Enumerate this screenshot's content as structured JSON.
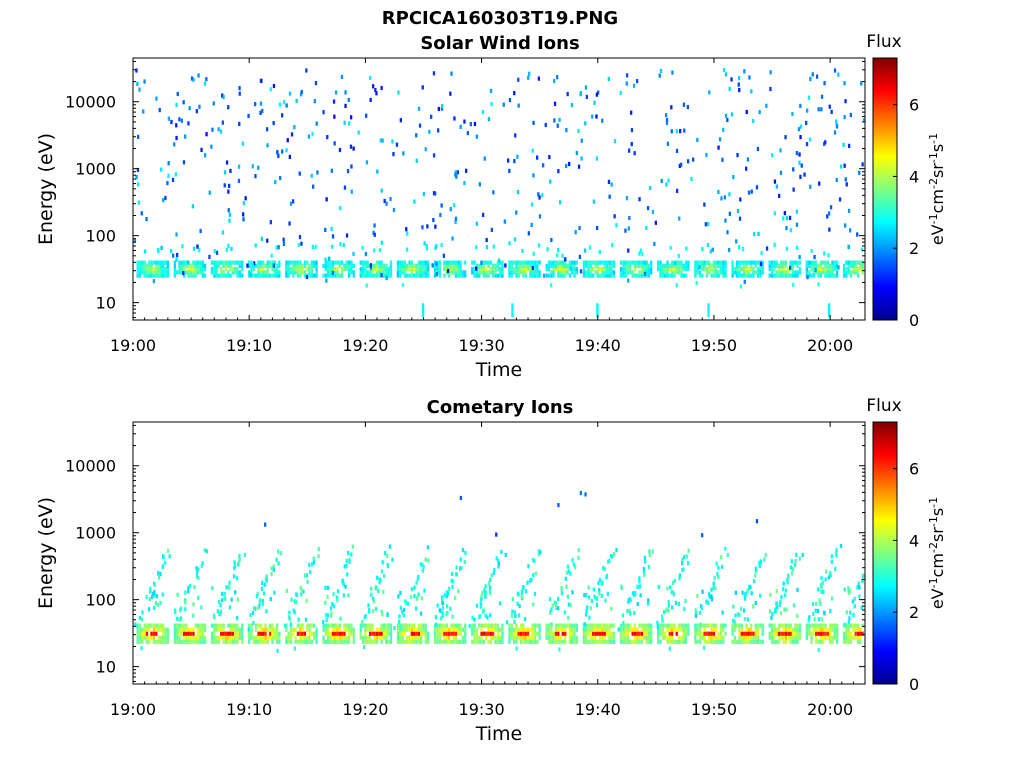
{
  "figure": {
    "title": "RPCICA160303T19.PNG"
  },
  "chart_data": [
    {
      "type": "heatmap",
      "title": "Solar Wind Ions",
      "xlabel": "Time",
      "ylabel": "Energy (eV)",
      "xticks": [
        "19:00",
        "19:10",
        "19:20",
        "19:30",
        "19:40",
        "19:50",
        "20:00"
      ],
      "xlim_minutes": [
        0,
        63
      ],
      "yscale": "log",
      "yticks": [
        10,
        100,
        1000,
        10000
      ],
      "ytick_labels": [
        "10",
        "100",
        "1000",
        "10000"
      ],
      "ylim": [
        5.5,
        45000
      ],
      "colorbar": {
        "title": "Flux",
        "label": "eV-1cm-2sr-1s-1",
        "label_parts": [
          "eV",
          "-1",
          "cm",
          "-2",
          "sr",
          "-1",
          "s",
          "-1"
        ],
        "range": [
          0,
          7.3
        ],
        "ticks": [
          0,
          2,
          4,
          6
        ],
        "colormap": "jet"
      },
      "bursts": {
        "period_minutes": 3.2,
        "first_minute": 0.3,
        "count": 20,
        "core_energy_range": [
          24,
          42
        ],
        "core_flux": 4.3,
        "low_energy_streak_flux": 2.7
      },
      "background": {
        "energy_range": [
          20,
          30000
        ],
        "flux_range": [
          1.0,
          2.7
        ],
        "density": "sparse"
      }
    },
    {
      "type": "heatmap",
      "title": "Cometary Ions",
      "xlabel": "Time",
      "ylabel": "Energy (eV)",
      "xticks": [
        "19:00",
        "19:10",
        "19:20",
        "19:30",
        "19:40",
        "19:50",
        "20:00"
      ],
      "xlim_minutes": [
        0,
        63
      ],
      "yscale": "log",
      "yticks": [
        10,
        100,
        1000,
        10000
      ],
      "ytick_labels": [
        "10",
        "100",
        "1000",
        "10000"
      ],
      "ylim": [
        5.5,
        45000
      ],
      "colorbar": {
        "title": "Flux",
        "label": "eV-1cm-2sr-1s-1",
        "label_parts": [
          "eV",
          "-1",
          "cm",
          "-2",
          "sr",
          "-1",
          "s",
          "-1"
        ],
        "range": [
          0,
          7.3
        ],
        "ticks": [
          0,
          2,
          4,
          6
        ],
        "colormap": "jet"
      },
      "bursts": {
        "period_minutes": 3.2,
        "first_minute": 0.3,
        "count": 20,
        "core_energy_range": [
          22,
          44
        ],
        "core_flux": 5.6,
        "core_peak_flux": 6.3,
        "rising_arm_max_energy": 550,
        "rising_arm_flux": 3.0
      },
      "background": {
        "energy_range": [
          600,
          5000
        ],
        "flux_range": [
          1.0,
          2.0
        ],
        "density": "very sparse"
      }
    }
  ]
}
